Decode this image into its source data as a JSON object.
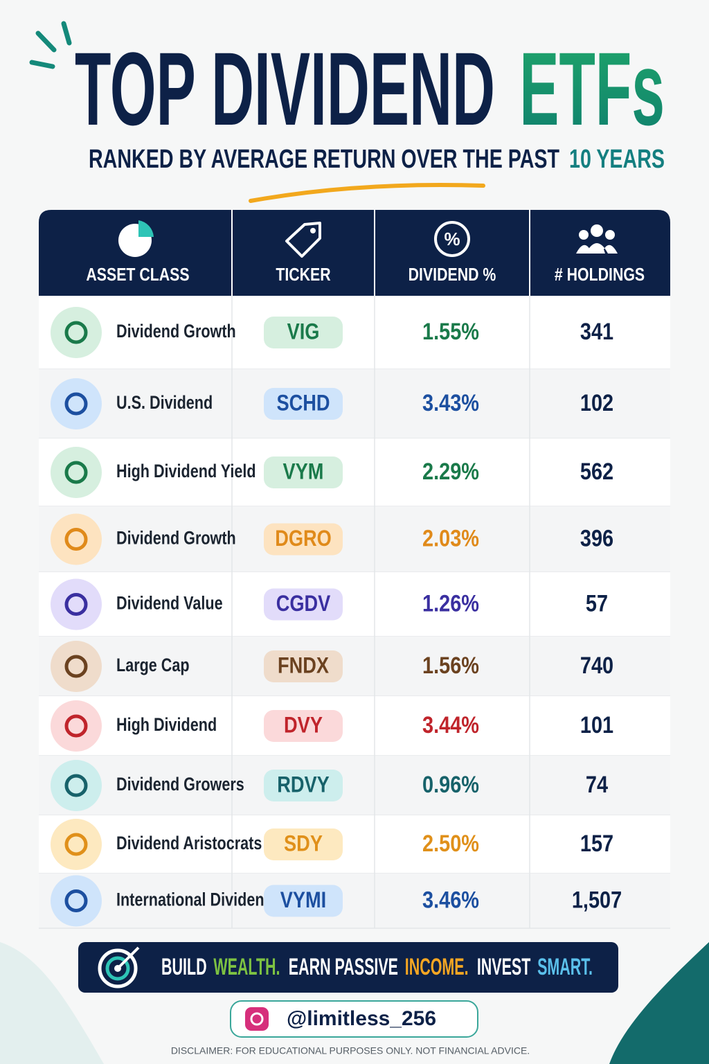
{
  "header": {
    "title": {
      "main": "TOP DIVIDEND",
      "highlight": "ETFs"
    },
    "subtitle": {
      "main": "RANKED BY AVERAGE RETURN OVER THE PAST",
      "highlight": "10 YEARS"
    }
  },
  "table": {
    "columns": [
      "ASSET CLASS",
      "TICKER",
      "DIVIDEND %",
      "# HOLDINGS"
    ],
    "rows": [
      [
        "Dividend Growth",
        "VIG",
        "1.55%",
        "341"
      ],
      [
        "U.S. Dividend",
        "SCHD",
        "3.43%",
        "102"
      ],
      [
        "High Dividend Yield",
        "VYM",
        "2.29%",
        "562"
      ],
      [
        "Dividend Growth",
        "DGRO",
        "2.03%",
        "396"
      ],
      [
        "Dividend Value",
        "CGDV",
        "1.26%",
        "57"
      ],
      [
        "Large Cap",
        "FNDX",
        "1.56%",
        "740"
      ],
      [
        "High Dividend",
        "DVY",
        "3.44%",
        "101"
      ],
      [
        "Dividend Growers",
        "RDVY",
        "0.96%",
        "74"
      ],
      [
        "Dividend Aristocrats",
        "SDY",
        "2.50%",
        "157"
      ],
      [
        "International Dividend",
        "VYMI",
        "3.46%",
        "1,507"
      ]
    ]
  },
  "banner": [
    "BUILD",
    "WEALTH.",
    "EARN PASSIVE",
    "INCOME.",
    "INVEST",
    "SMART."
  ],
  "handle": "@limitless_256",
  "disclaimer": "DISCLAIMER: FOR EDUCATIONAL PURPOSES ONLY. NOT FINANCIAL ADVICE."
}
